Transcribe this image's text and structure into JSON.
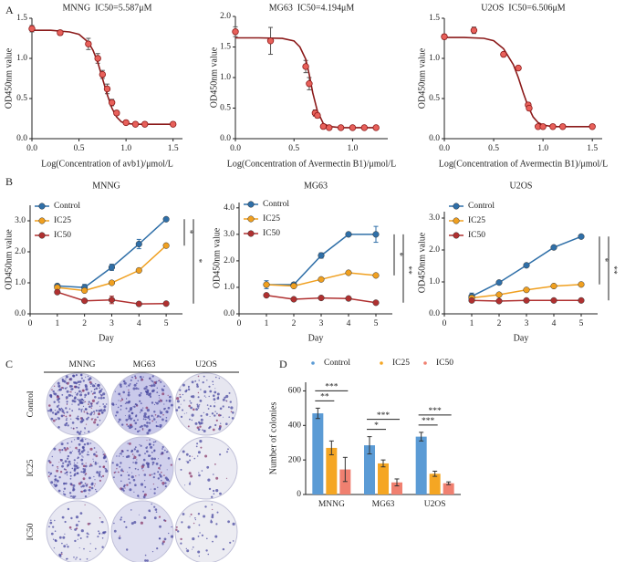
{
  "panel_labels": [
    "A",
    "B",
    "C",
    "D"
  ],
  "colony_assay": {
    "columns": [
      "MNNG",
      "MG63",
      "U2OS"
    ],
    "rows": [
      "Control",
      "IC25",
      "IC50"
    ]
  },
  "chart_data": [
    {
      "type": "dose-response",
      "title": "MNNG  IC50=5.587μM",
      "x_label": "Log(Concentration of avb1)/μmol/L",
      "y_label": "OD450nm value",
      "xlim": [
        0,
        1.6
      ],
      "xticks": [
        {
          "value": 0,
          "label": "0.0"
        },
        0.5,
        {
          "value": 1,
          "label": "1.0"
        },
        1.5
      ],
      "ylim": [
        0,
        1.5
      ],
      "yticks": [
        {
          "value": 0,
          "label": "0.0"
        },
        0.5,
        {
          "value": 1,
          "label": "1.0"
        },
        1.5
      ],
      "x": [
        0,
        0.3,
        0.6,
        0.7,
        0.75,
        0.8,
        0.85,
        0.9,
        1.0,
        1.1,
        1.2,
        1.5
      ],
      "values": [
        1.37,
        1.32,
        1.18,
        1.0,
        0.8,
        0.62,
        0.45,
        0.32,
        0.2,
        0.18,
        0.18,
        0.18
      ],
      "errors": [
        0.04,
        0.03,
        0.07,
        0.06,
        0.05,
        0.06,
        0.04,
        0.03,
        0.02,
        0.02,
        0.02,
        0.02
      ],
      "color": "#e8605a",
      "fit": {
        "color": "#8b1a1a",
        "x": [
          0,
          0.2,
          0.4,
          0.5,
          0.6,
          0.65,
          0.7,
          0.75,
          0.8,
          0.85,
          0.9,
          0.95,
          1.0,
          1.1,
          1.2,
          1.5
        ],
        "values": [
          1.35,
          1.35,
          1.33,
          1.3,
          1.2,
          1.1,
          0.95,
          0.75,
          0.55,
          0.38,
          0.27,
          0.21,
          0.19,
          0.18,
          0.18,
          0.18
        ]
      }
    },
    {
      "type": "dose-response",
      "title": "MG63  IC50=4.194μM",
      "x_label": "Log(Concentration of Avermectin B1)/μmol/L",
      "y_label": "OD450nm value",
      "xlim": [
        0,
        1.3
      ],
      "xticks": [
        {
          "value": 0,
          "label": "0.0"
        },
        0.5,
        {
          "value": 1,
          "label": "1.0"
        }
      ],
      "ylim": [
        0,
        2.0
      ],
      "yticks": [
        {
          "value": 0,
          "label": "0.0"
        },
        0.5,
        {
          "value": 1,
          "label": "1.0"
        },
        1.5,
        {
          "value": 2,
          "label": "2.0"
        }
      ],
      "x": [
        0,
        0.3,
        0.6,
        0.63,
        0.68,
        0.7,
        0.75,
        0.8,
        0.9,
        1.0,
        1.1,
        1.2
      ],
      "values": [
        1.75,
        1.6,
        1.18,
        0.9,
        0.42,
        0.38,
        0.2,
        0.18,
        0.18,
        0.18,
        0.18,
        0.18
      ],
      "errors": [
        0.08,
        0.22,
        0.1,
        0.1,
        0.05,
        0.04,
        0.02,
        0.02,
        0.02,
        0.02,
        0.02,
        0.02
      ],
      "color": "#e8605a",
      "fit": {
        "color": "#8b1a1a",
        "x": [
          0,
          0.2,
          0.4,
          0.5,
          0.55,
          0.6,
          0.63,
          0.66,
          0.7,
          0.75,
          0.8,
          0.9,
          1.0,
          1.2
        ],
        "values": [
          1.65,
          1.65,
          1.64,
          1.6,
          1.5,
          1.3,
          1.05,
          0.75,
          0.45,
          0.25,
          0.2,
          0.18,
          0.18,
          0.18
        ]
      }
    },
    {
      "type": "dose-response",
      "title": "U2OS  IC50=6.506μM",
      "x_label": "Log(Concentration of Avermectin B1)/μmol/L",
      "y_label": "OD450nm value",
      "xlim": [
        0,
        1.6
      ],
      "xticks": [
        {
          "value": 0,
          "label": "0.0"
        },
        0.5,
        {
          "value": 1,
          "label": "1.0"
        },
        1.5
      ],
      "ylim": [
        0,
        1.5
      ],
      "yticks": [
        {
          "value": 0,
          "label": "0.0"
        },
        0.5,
        {
          "value": 1,
          "label": "1.0"
        },
        1.5
      ],
      "x": [
        0,
        0.3,
        0.6,
        0.75,
        0.85,
        0.86,
        0.95,
        1.0,
        1.1,
        1.2,
        1.5
      ],
      "values": [
        1.27,
        1.35,
        1.05,
        0.88,
        0.42,
        0.38,
        0.15,
        0.15,
        0.15,
        0.15,
        0.15
      ],
      "errors": [
        0.03,
        0.04,
        0.02,
        0.02,
        0.03,
        0.03,
        0.02,
        0.02,
        0.02,
        0.02,
        0.02
      ],
      "color": "#e8605a",
      "fit": {
        "color": "#8b1a1a",
        "x": [
          0,
          0.2,
          0.4,
          0.5,
          0.6,
          0.7,
          0.75,
          0.8,
          0.85,
          0.9,
          0.95,
          1.0,
          1.1,
          1.2,
          1.5
        ],
        "values": [
          1.26,
          1.26,
          1.25,
          1.22,
          1.12,
          0.92,
          0.76,
          0.57,
          0.4,
          0.27,
          0.2,
          0.17,
          0.15,
          0.15,
          0.15
        ]
      }
    },
    {
      "type": "line",
      "title": "MNNG",
      "x_label": "Day",
      "y_label": "OD450nm value",
      "legend": "upper left",
      "x": [
        1,
        2,
        3,
        4,
        5
      ],
      "xlim": [
        0,
        5.6
      ],
      "xticks": [
        0,
        1,
        2,
        3,
        4,
        5
      ],
      "ylim": [
        0,
        3.5
      ],
      "yticks": [
        {
          "value": 0,
          "label": "0.0"
        },
        {
          "value": 1,
          "label": "1.0"
        },
        {
          "value": 2,
          "label": "2.0"
        },
        {
          "value": 3,
          "label": "3.0"
        }
      ],
      "series": [
        {
          "name": "Control",
          "color": "#2f6fa8",
          "values": [
            0.9,
            0.85,
            1.5,
            2.25,
            3.05
          ],
          "errors": [
            0.05,
            0.1,
            0.1,
            0.15,
            0.05
          ]
        },
        {
          "name": "IC25",
          "color": "#f0a020",
          "values": [
            0.85,
            0.75,
            1.0,
            1.4,
            2.2
          ],
          "errors": [
            0.05,
            0.05,
            0.05,
            0.05,
            0.05
          ]
        },
        {
          "name": "IC50",
          "color": "#b03030",
          "values": [
            0.7,
            0.42,
            0.45,
            0.32,
            0.33
          ],
          "errors": [
            0.05,
            0.05,
            0.12,
            0.03,
            0.03
          ]
        }
      ],
      "significance": [
        {
          "label": "*",
          "between": [
            "Control",
            "IC25"
          ]
        },
        {
          "label": "*",
          "between": [
            "Control",
            "IC50"
          ]
        }
      ]
    },
    {
      "type": "line",
      "title": "MG63",
      "x_label": "Day",
      "y_label": "OD450nm value",
      "legend": "upper left",
      "x": [
        1,
        2,
        3,
        4,
        5
      ],
      "xlim": [
        0,
        5.6
      ],
      "xticks": [
        0,
        1,
        2,
        3,
        4,
        5
      ],
      "ylim": [
        0,
        4.2
      ],
      "yticks": [
        {
          "value": 0,
          "label": "0.0"
        },
        {
          "value": 1,
          "label": "1.0"
        },
        {
          "value": 2,
          "label": "2.0"
        },
        {
          "value": 3,
          "label": "3.0"
        },
        {
          "value": 4,
          "label": "4.0"
        }
      ],
      "series": [
        {
          "name": "Control",
          "color": "#2f6fa8",
          "values": [
            1.1,
            1.1,
            2.2,
            3.0,
            3.0
          ],
          "errors": [
            0.15,
            0.08,
            0.1,
            0.05,
            0.3
          ]
        },
        {
          "name": "IC25",
          "color": "#f0a020",
          "values": [
            1.1,
            1.05,
            1.3,
            1.55,
            1.45
          ],
          "errors": [
            0.05,
            0.05,
            0.05,
            0.05,
            0.05
          ]
        },
        {
          "name": "IC50",
          "color": "#b03030",
          "values": [
            0.7,
            0.55,
            0.6,
            0.58,
            0.42
          ],
          "errors": [
            0.03,
            0.03,
            0.03,
            0.03,
            0.03
          ]
        }
      ],
      "significance": [
        {
          "label": "*",
          "between": [
            "Control",
            "IC25"
          ]
        },
        {
          "label": "**",
          "between": [
            "Control",
            "IC50"
          ]
        }
      ]
    },
    {
      "type": "line",
      "title": "U2OS",
      "x_label": "Day",
      "y_label": "OD450nm value",
      "legend": "upper left",
      "x": [
        1,
        2,
        3,
        4,
        5
      ],
      "xlim": [
        0,
        5.6
      ],
      "xticks": [
        0,
        1,
        2,
        3,
        4,
        5
      ],
      "ylim": [
        0,
        3.2
      ],
      "yticks": [
        {
          "value": 0,
          "label": "0.0"
        },
        {
          "value": 1,
          "label": "1.0"
        },
        {
          "value": 2,
          "label": "2.0"
        },
        {
          "value": 3,
          "label": "3.0"
        }
      ],
      "series": [
        {
          "name": "Control",
          "color": "#2f6fa8",
          "values": [
            0.55,
            0.98,
            1.52,
            2.08,
            2.42
          ],
          "errors": [
            0.1,
            0.03,
            0.03,
            0.03,
            0.03
          ]
        },
        {
          "name": "IC25",
          "color": "#f0a020",
          "values": [
            0.5,
            0.6,
            0.75,
            0.87,
            0.92
          ],
          "errors": [
            0.03,
            0.03,
            0.03,
            0.03,
            0.03
          ]
        },
        {
          "name": "IC50",
          "color": "#b03030",
          "values": [
            0.42,
            0.4,
            0.42,
            0.42,
            0.42
          ],
          "errors": [
            0.02,
            0.02,
            0.02,
            0.02,
            0.02
          ]
        }
      ],
      "significance": [
        {
          "label": "*",
          "between": [
            "Control",
            "IC25"
          ]
        },
        {
          "label": "**",
          "between": [
            "Control",
            "IC50"
          ]
        }
      ]
    },
    {
      "type": "bar",
      "y_label": "Number of colonies",
      "legend": "top",
      "categories": [
        "MNNG",
        "MG63",
        "U2OS"
      ],
      "ylim": [
        0,
        650
      ],
      "yticks": [
        0,
        200,
        400,
        600
      ],
      "series": [
        {
          "name": "Control",
          "color": "#5b9bd5",
          "values": [
            470,
            285,
            335
          ],
          "errors": [
            30,
            50,
            25
          ]
        },
        {
          "name": "IC25",
          "color": "#f5a623",
          "values": [
            270,
            180,
            120
          ],
          "errors": [
            40,
            20,
            15
          ]
        },
        {
          "name": "IC50",
          "color": "#f08070",
          "values": [
            145,
            70,
            65
          ],
          "errors": [
            70,
            20,
            8
          ]
        }
      ],
      "significance": [
        {
          "category": "MNNG",
          "label": "**",
          "between": [
            "Control",
            "IC25"
          ]
        },
        {
          "category": "MNNG",
          "label": "***",
          "between": [
            "Control",
            "IC50"
          ]
        },
        {
          "category": "MG63",
          "label": "*",
          "between": [
            "Control",
            "IC25"
          ]
        },
        {
          "category": "MG63",
          "label": "***",
          "between": [
            "Control",
            "IC50"
          ]
        },
        {
          "category": "U2OS",
          "label": "***",
          "between": [
            "Control",
            "IC25"
          ]
        },
        {
          "category": "U2OS",
          "label": "***",
          "between": [
            "Control",
            "IC50"
          ]
        }
      ]
    }
  ]
}
